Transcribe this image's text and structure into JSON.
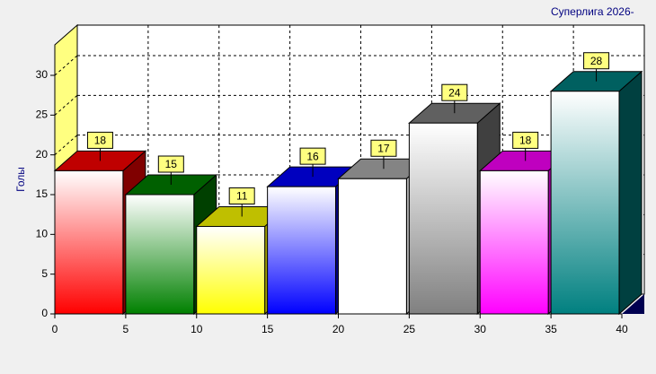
{
  "chart_data": {
    "type": "histogram",
    "title": "Суперлига 2026-",
    "y_label": "Голы",
    "bins": [
      0,
      5,
      10,
      15,
      20,
      25,
      30,
      35,
      40
    ],
    "values": [
      18,
      15,
      11,
      16,
      17,
      24,
      18,
      28
    ],
    "colors": [
      "#ff0000",
      "#008000",
      "#ffff00",
      "#0000ff",
      "#ffffff",
      "#808080",
      "#ff00ff",
      "#008080"
    ],
    "side_colors": [
      "#800000",
      "#004000",
      "#a0a000",
      "#000080",
      "#b0b0b0",
      "#404040",
      "#a000a0",
      "#004040"
    ],
    "xlim": [
      0,
      40
    ],
    "xticks": [
      0,
      5,
      10,
      15,
      20,
      25,
      30,
      35,
      40
    ],
    "ylim": [
      0,
      30
    ],
    "yticks": [
      0,
      5,
      10,
      15,
      20,
      25,
      30
    ],
    "grid": true
  }
}
